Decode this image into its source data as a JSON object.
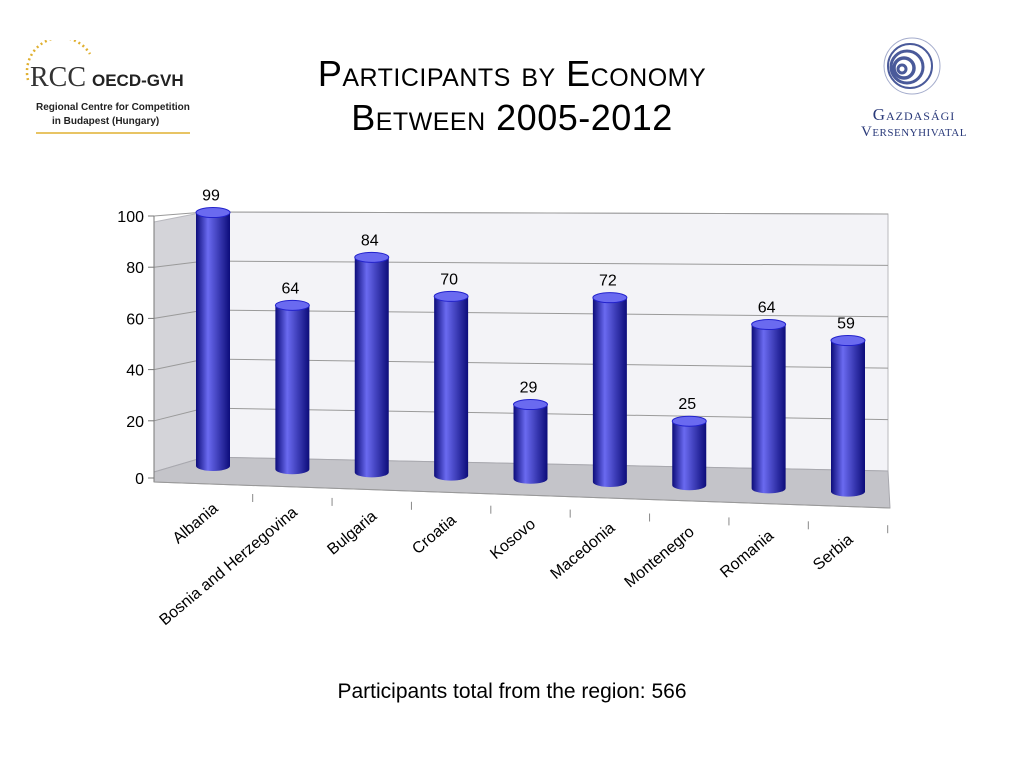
{
  "slide": {
    "title_line1": "Participants by Economy",
    "title_line2": "Between 2005-2012",
    "footer_note": "Participants total from the region: 566"
  },
  "logos": {
    "left": {
      "wordmark": "RCC",
      "partner": "OECD-GVH",
      "caption_line1": "Regional Centre for Competition",
      "caption_line2": "in Budapest (Hungary)"
    },
    "right": {
      "line1": "Gazdasági",
      "line2": "Versenyhivatal"
    }
  },
  "colors": {
    "bar": "#2222cc",
    "bar_highlight": "#6a6af0",
    "bar_shadow": "#0c0c7a",
    "wall": "#f3f3f7",
    "side_wall": "#d4d4d9",
    "floor": "#c4c4c9",
    "gridline": "#9a9a9a"
  },
  "chart_data": {
    "type": "bar",
    "style": "3d-cylinder",
    "categories": [
      "Albania",
      "Bosnia and Herzegovina",
      "Bulgaria",
      "Croatia",
      "Kosovo",
      "Macedonia",
      "Montenegro",
      "Romania",
      "Serbia"
    ],
    "values": [
      99,
      64,
      84,
      70,
      29,
      72,
      25,
      64,
      59
    ],
    "ylim": [
      0,
      100
    ],
    "yticks": [
      0,
      20,
      40,
      60,
      80,
      100
    ],
    "grid": true,
    "legend": false,
    "data_labels": true,
    "title": "",
    "xlabel": "",
    "ylabel": ""
  }
}
